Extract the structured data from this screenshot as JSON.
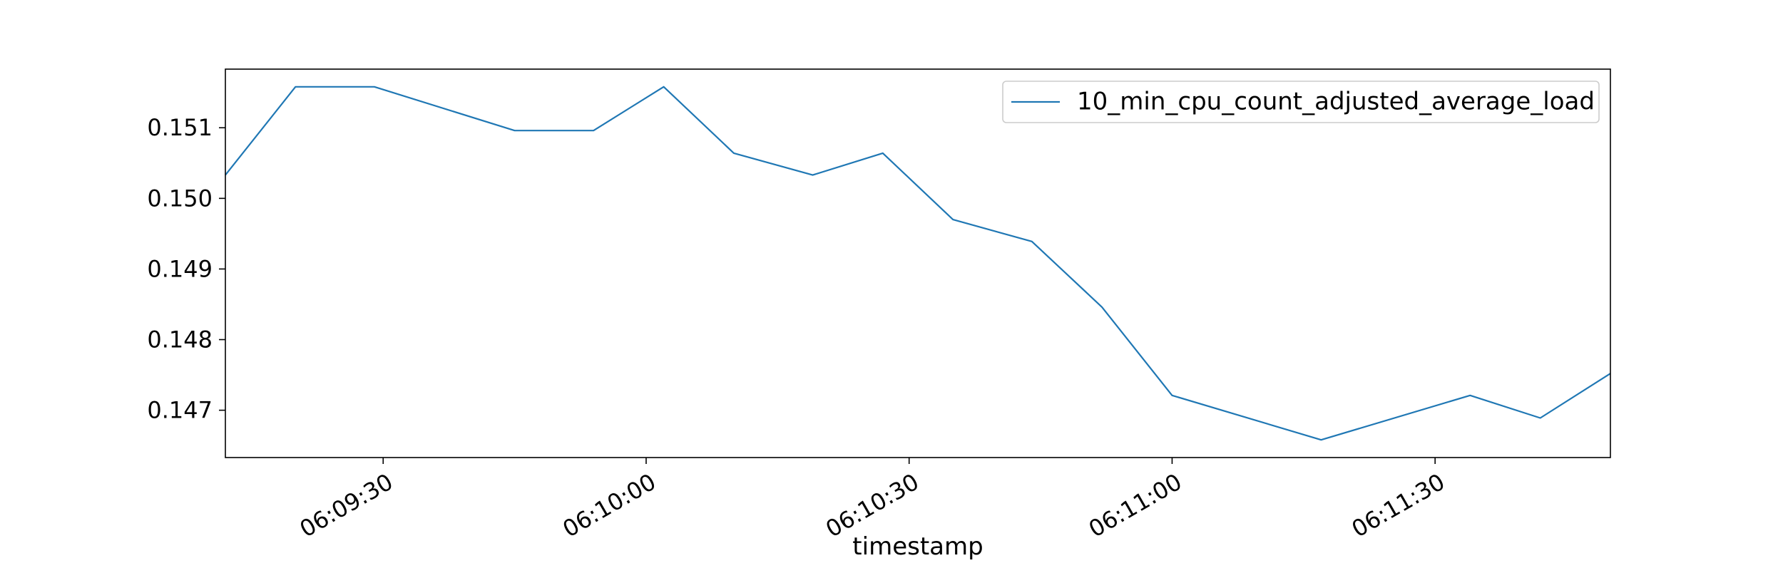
{
  "chart_data": {
    "type": "line",
    "title": "",
    "xlabel": "timestamp",
    "ylabel": "",
    "x_ticks": [
      "06:09:30",
      "06:10:00",
      "06:10:30",
      "06:11:00",
      "06:11:30"
    ],
    "y_ticks": [
      "0.147",
      "0.148",
      "0.149",
      "0.150",
      "0.151"
    ],
    "xlim": [
      "06:09:12",
      "06:11:50"
    ],
    "ylim": [
      0.14633,
      0.15183
    ],
    "grid": false,
    "legend_position": "top-right",
    "series": [
      {
        "name": "10_min_cpu_count_adjusted_average_load",
        "color": "#1f77b4",
        "x": [
          "06:09:12",
          "06:09:20",
          "06:09:29",
          "06:09:45",
          "06:09:54",
          "06:10:02",
          "06:10:10",
          "06:10:19",
          "06:10:27",
          "06:10:35",
          "06:10:44",
          "06:10:52",
          "06:11:00",
          "06:11:17",
          "06:11:34",
          "06:11:42",
          "06:11:50"
        ],
        "y": [
          0.15033,
          0.15158,
          0.15158,
          0.15096,
          0.15096,
          0.15158,
          0.15064,
          0.15033,
          0.15064,
          0.1497,
          0.14939,
          0.14846,
          0.14721,
          0.14658,
          0.14721,
          0.14689,
          0.14752
        ]
      }
    ]
  }
}
